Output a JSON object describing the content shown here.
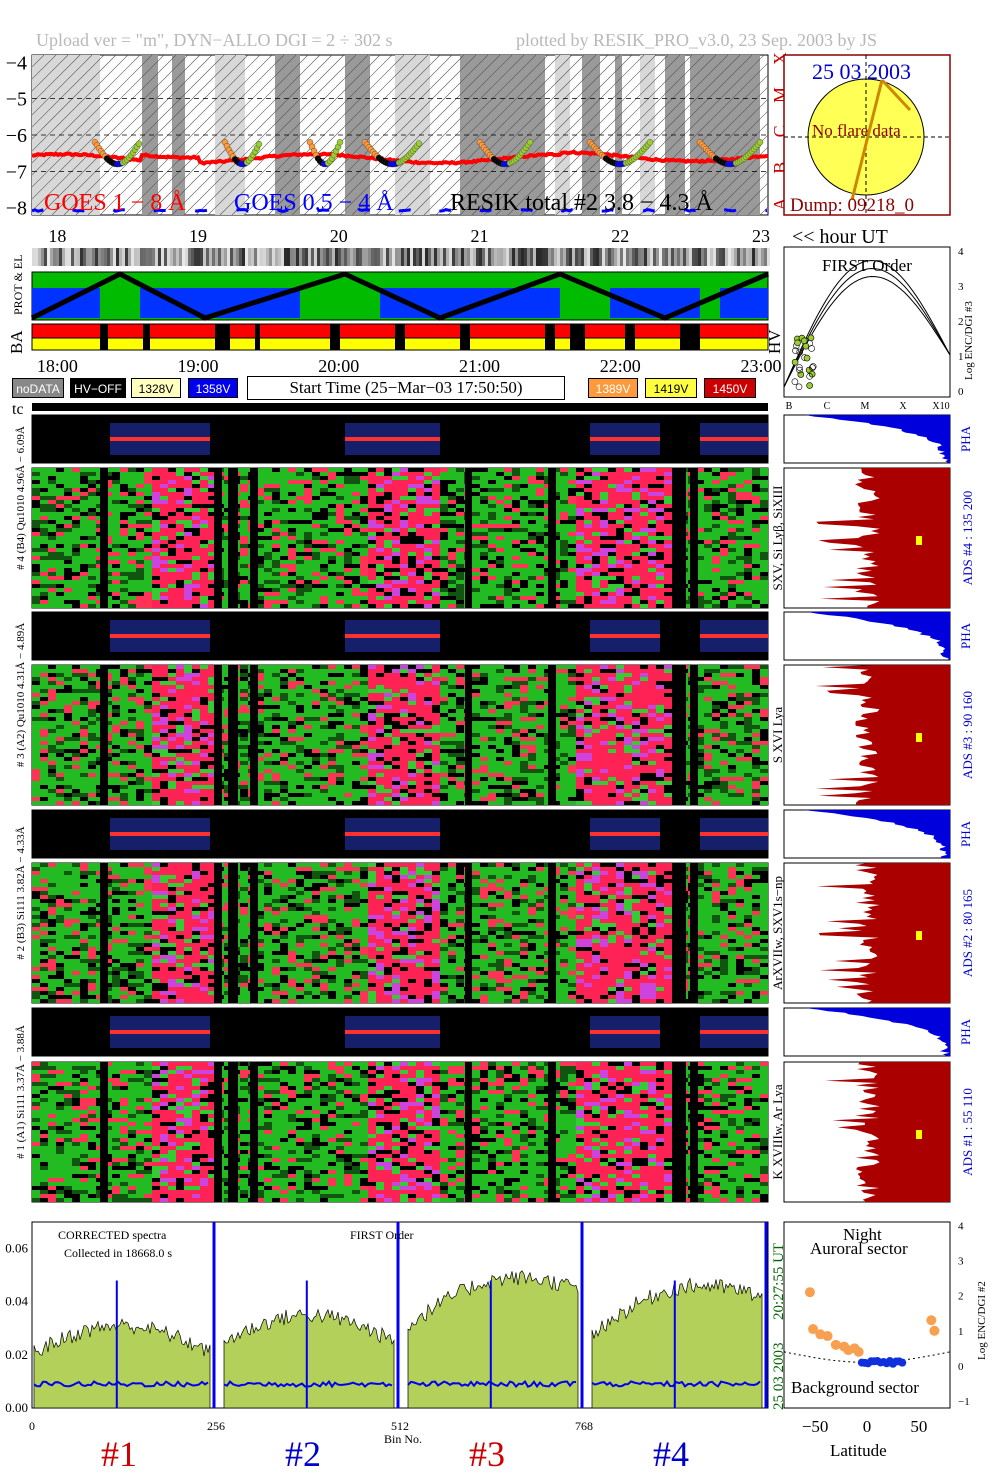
{
  "header": {
    "left": "Upload ver = \"m\", DYN−ALLO DGI =   2 ÷ 302 s",
    "right": "plotted by RESIK_PRO_v3.0, 23 Sep. 2003 by JS"
  },
  "goes": {
    "y_ticks": [
      "−4",
      "−5",
      "−6",
      "−7",
      "−8"
    ],
    "class_letters": [
      "X",
      "M",
      "C",
      "B",
      "A"
    ],
    "legend_goes18": "GOES 1 − 8 Å",
    "legend_goes054": "GOES 0.5 − 4 Å",
    "legend_resik": "RESIK total #2  3.8 − 4.3 Å",
    "hour_ticks": [
      "18",
      "19",
      "20",
      "21",
      "22",
      "23"
    ],
    "hour_label": "<< hour UT",
    "colors": {
      "goes18": "#ff0000",
      "goes054": "#0000ff",
      "resik": "#000000"
    }
  },
  "sun": {
    "date": "25 03 2003",
    "note": "No flare data",
    "dump": "Dump: 09218_0"
  },
  "status_panel": {
    "label_top": "PROT & EL",
    "label_ba": "BA",
    "label_hv": "HV",
    "time_ticks": [
      "18:00",
      "19:00",
      "20:00",
      "21:00",
      "22:00",
      "23:00"
    ]
  },
  "legend": {
    "items": [
      {
        "label": "noDATA",
        "bg": "#888888",
        "fg": "#ffffff"
      },
      {
        "label": "HV−OFF",
        "bg": "#000000",
        "fg": "#ffffff"
      },
      {
        "label": "1328V",
        "bg": "#ffffc0",
        "fg": "#000000"
      },
      {
        "label": "1358V",
        "bg": "#0000ee",
        "fg": "#ffffff"
      },
      {
        "label": "1389V",
        "bg": "#ff9a3c",
        "fg": "#ffffff"
      },
      {
        "label": "1419V",
        "bg": "#ffff40",
        "fg": "#000000"
      },
      {
        "label": "1450V",
        "bg": "#cc0000",
        "fg": "#ffffff"
      }
    ],
    "start_time": "Start Time (25−Mar−03 17:50:50)"
  },
  "first_order": {
    "title": "FIRST Order",
    "ylabel": "Log ENC/DGI #3",
    "y_ticks": [
      "4",
      "3",
      "2",
      "1",
      "0"
    ],
    "x_ticks": [
      "B",
      "C",
      "M",
      "X",
      "X10"
    ]
  },
  "tc_label": "tc",
  "channels": [
    {
      "pha_label": "# 4 (B4) Qu1010 4.96Å − 6.09Å",
      "side_label": "SXV, Si Lyβ, SiXIII",
      "ads_label": "ADS #4 :   135 200",
      "pha": "PHA"
    },
    {
      "pha_label": "# 3 (A2) Qu1010 4.31Å − 4.89Å",
      "side_label": "S XVI Lya",
      "ads_label": "ADS #3 :   90 160",
      "pha": "PHA"
    },
    {
      "pha_label": "# 2 (B3) Si111 3.82Å − 4.33Å",
      "side_label": "ArXVIIw, SXV1s−np",
      "ads_label": "ADS #2 :   80 165",
      "pha": "PHA"
    },
    {
      "pha_label": "# 1 (A1) Si111 3.37Å − 3.88Å",
      "side_label": "K XVIIIw, Ar Lya",
      "ads_label": "ADS #1 :   55 110",
      "pha": "PHA"
    }
  ],
  "spectra": {
    "title_left": "CORRECTED spectra",
    "collected": "Collected in 18668.0 s",
    "title_mid": "FIRST Order",
    "y_ticks": [
      "0.06",
      "0.04",
      "0.02",
      "0.00"
    ],
    "x_ticks": [
      "0",
      "256",
      "512",
      "768"
    ],
    "xlabel": "Bin No.",
    "side_time": "20:27:55 UT",
    "side_date": "25 03 2003",
    "channel_labels": [
      {
        "text": "#1",
        "color": "#cc0000"
      },
      {
        "text": "#2",
        "color": "#0000cc"
      },
      {
        "text": "#3",
        "color": "#cc0000"
      },
      {
        "text": "#4",
        "color": "#0000cc"
      }
    ]
  },
  "latitude": {
    "title1": "Night",
    "title2": "Auroral sector",
    "bottom": "Background sector",
    "ylabel": "Log ENC/DGI #2",
    "xlabel": "Latitude",
    "x_ticks": [
      "−50",
      "0",
      "50"
    ],
    "y_ticks": [
      "4",
      "3",
      "2",
      "1",
      "0",
      "−1"
    ]
  }
}
